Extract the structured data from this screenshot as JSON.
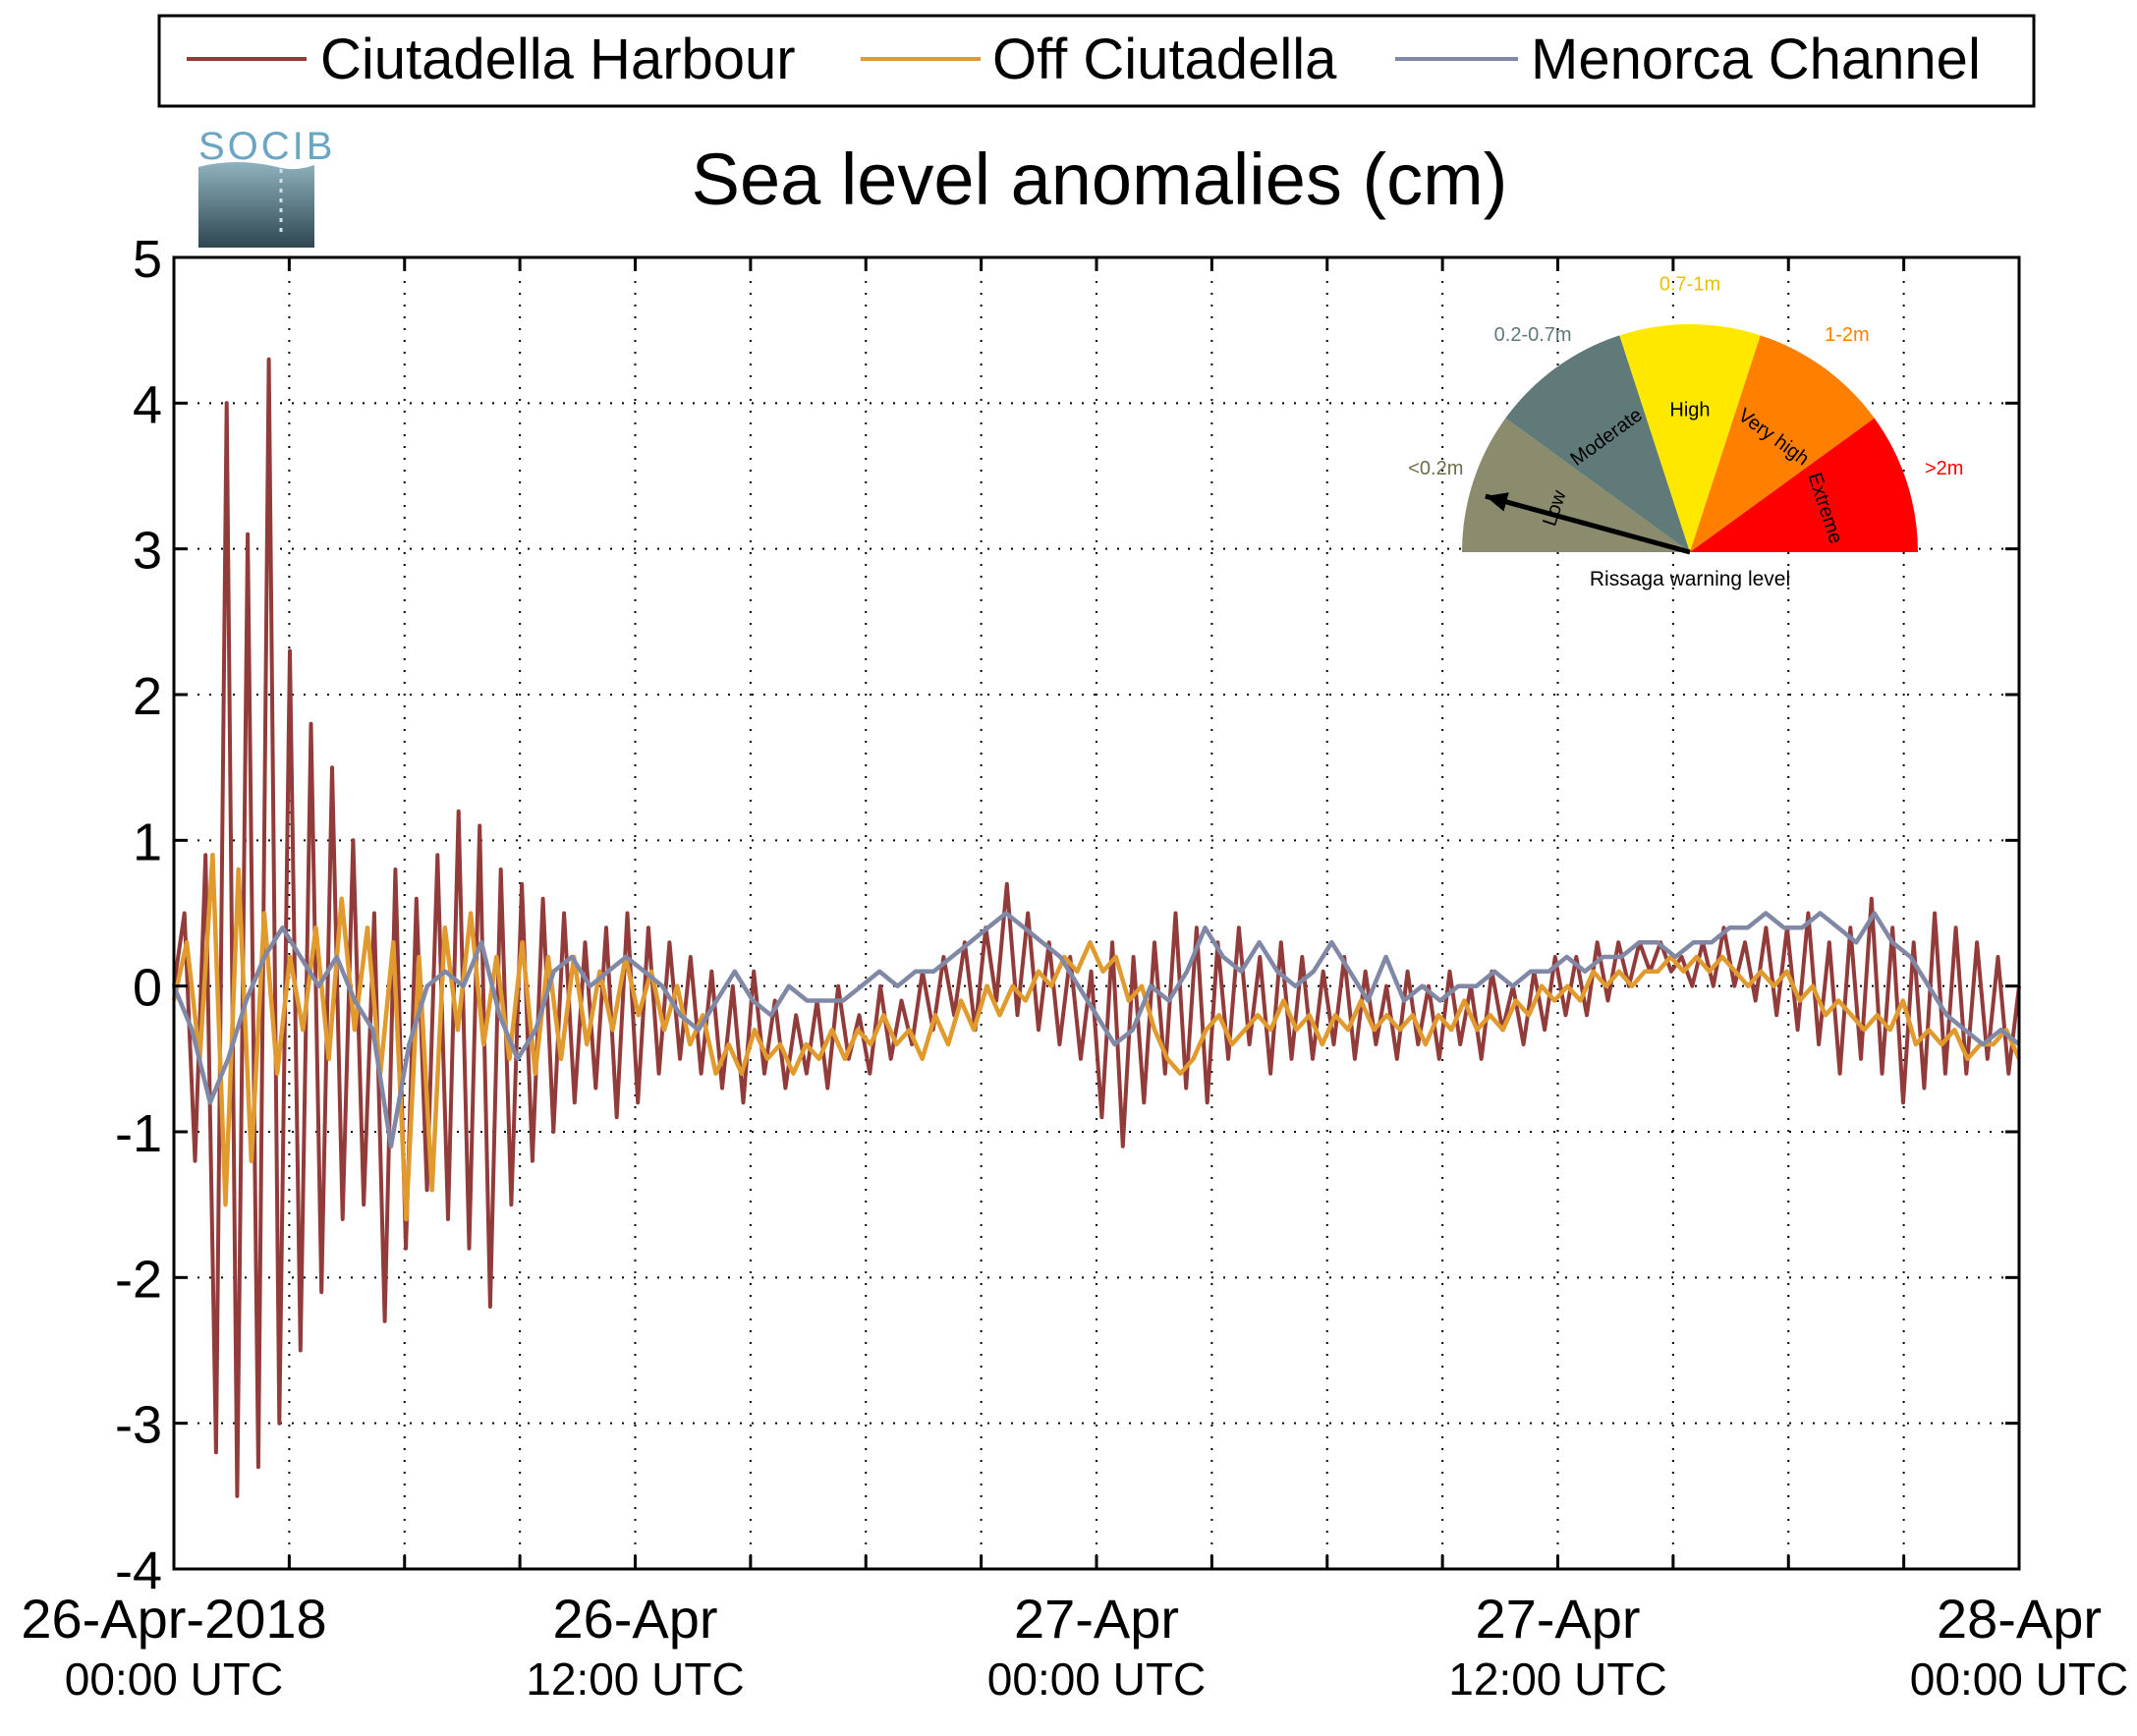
{
  "chart_data": {
    "type": "line",
    "title": "Sea level anomalies (cm)",
    "logo_text": "SOCIB",
    "ylim": [
      -4,
      5
    ],
    "yticks": [
      "5",
      "4",
      "3",
      "2",
      "1",
      "0",
      "-1",
      "-2",
      "-3",
      "-4"
    ],
    "xlim_hours": [
      0,
      48
    ],
    "grid": true,
    "legend_placement": "top",
    "x_tick_labels": [
      {
        "date": "26-Apr-2018",
        "time": "00:00 UTC",
        "hour": 0
      },
      {
        "date": "26-Apr",
        "time": "12:00 UTC",
        "hour": 12
      },
      {
        "date": "27-Apr",
        "time": "00:00 UTC",
        "hour": 24
      },
      {
        "date": "27-Apr",
        "time": "12:00 UTC",
        "hour": 36
      },
      {
        "date": "28-Apr",
        "time": "00:00 UTC",
        "hour": 48
      }
    ],
    "series": [
      {
        "name": "Ciutadella Harbour",
        "color": "#923b3b",
        "values": [
          0,
          0.5,
          -1.2,
          0.9,
          -3.2,
          4.0,
          -3.5,
          3.1,
          -3.3,
          4.3,
          -3.0,
          2.3,
          -2.5,
          1.8,
          -2.1,
          1.5,
          -1.6,
          1.0,
          -1.5,
          0.5,
          -2.3,
          0.8,
          -1.8,
          0.6,
          -1.4,
          0.9,
          -1.6,
          1.2,
          -1.8,
          1.1,
          -2.2,
          0.8,
          -1.5,
          0.7,
          -1.2,
          0.6,
          -1.0,
          0.5,
          -0.8,
          0.3,
          -0.7,
          0.4,
          -0.9,
          0.5,
          -0.8,
          0.4,
          -0.6,
          0.3,
          -0.5,
          0.2,
          -0.6,
          0.1,
          -0.7,
          0.0,
          -0.8,
          0.1,
          -0.6,
          -0.1,
          -0.7,
          -0.2,
          -0.6,
          -0.1,
          -0.7,
          0.0,
          -0.5,
          -0.2,
          -0.6,
          0.0,
          -0.5,
          -0.1,
          -0.4,
          0.1,
          -0.3,
          0.2,
          -0.2,
          0.3,
          -0.3,
          0.4,
          -0.1,
          0.7,
          -0.2,
          0.5,
          -0.3,
          0.3,
          -0.4,
          0.2,
          -0.5,
          0.1,
          -0.9,
          0.3,
          -1.1,
          0.2,
          -0.8,
          0.3,
          -0.6,
          0.5,
          -0.7,
          0.4,
          -0.8,
          0.3,
          -0.5,
          0.4,
          -0.4,
          0.2,
          -0.6,
          0.3,
          -0.5,
          0.2,
          -0.5,
          0.1,
          -0.4,
          0.2,
          -0.5,
          0.1,
          -0.4,
          0.0,
          -0.5,
          0.1,
          -0.4,
          0.0,
          -0.5,
          0.1,
          -0.4,
          0.0,
          -0.5,
          0.1,
          -0.3,
          0.0,
          -0.4,
          0.1,
          -0.3,
          0.2,
          -0.2,
          0.2,
          -0.2,
          0.3,
          -0.1,
          0.3,
          0.0,
          0.3,
          0.1,
          0.3,
          0.1,
          0.2,
          0.0,
          0.3,
          0.0,
          0.4,
          0.0,
          0.3,
          -0.1,
          0.4,
          -0.2,
          0.4,
          -0.3,
          0.5,
          -0.4,
          0.3,
          -0.6,
          0.4,
          -0.5,
          0.6,
          -0.6,
          0.4,
          -0.8,
          0.3,
          -0.7,
          0.5,
          -0.6,
          0.4,
          -0.6,
          0.3,
          -0.5,
          0.2,
          -0.6,
          0.0
        ],
        "note_values_span_hours": [
          0,
          48
        ]
      },
      {
        "name": "Off Ciutadella",
        "color": "#e09a2e",
        "values": [
          -0.1,
          0.3,
          -0.5,
          0.9,
          -1.5,
          0.8,
          -1.2,
          0.5,
          -0.6,
          0.2,
          -0.3,
          0.4,
          -0.5,
          0.6,
          -0.3,
          0.4,
          -0.6,
          0.3,
          -1.6,
          0.2,
          -1.4,
          0.4,
          -0.3,
          0.5,
          -0.4,
          0.2,
          -0.5,
          0.3,
          -0.6,
          0.2,
          -0.5,
          0.2,
          -0.4,
          0.1,
          -0.3,
          0.2,
          -0.2,
          0.1,
          -0.3,
          0.0,
          -0.4,
          -0.2,
          -0.6,
          -0.4,
          -0.6,
          -0.3,
          -0.5,
          -0.4,
          -0.6,
          -0.4,
          -0.5,
          -0.3,
          -0.5,
          -0.3,
          -0.4,
          -0.2,
          -0.4,
          -0.3,
          -0.5,
          -0.2,
          -0.4,
          -0.1,
          -0.3,
          0.0,
          -0.2,
          0.0,
          -0.1,
          0.1,
          0.0,
          0.2,
          0.1,
          0.3,
          0.1,
          0.2,
          -0.1,
          0.0,
          -0.3,
          -0.5,
          -0.6,
          -0.5,
          -0.3,
          -0.2,
          -0.4,
          -0.3,
          -0.2,
          -0.3,
          -0.1,
          -0.3,
          -0.2,
          -0.4,
          -0.2,
          -0.3,
          -0.1,
          -0.3,
          -0.2,
          -0.3,
          -0.2,
          -0.4,
          -0.2,
          -0.3,
          -0.1,
          -0.3,
          -0.2,
          -0.3,
          -0.1,
          -0.2,
          0.0,
          -0.1,
          0.0,
          -0.1,
          0.1,
          0.0,
          0.1,
          0.0,
          0.1,
          0.1,
          0.2,
          0.1,
          0.2,
          0.1,
          0.2,
          0.1,
          0.0,
          0.1,
          0.0,
          0.1,
          -0.1,
          0.0,
          -0.2,
          -0.1,
          -0.2,
          -0.3,
          -0.2,
          -0.3,
          -0.1,
          -0.4,
          -0.3,
          -0.4,
          -0.3,
          -0.5,
          -0.4,
          -0.4,
          -0.3,
          -0.5
        ],
        "note_values_span_hours": [
          0,
          48
        ]
      },
      {
        "name": "Menorca Channel",
        "color": "#8088a6",
        "values": [
          0.0,
          -0.3,
          -0.8,
          -0.5,
          -0.1,
          0.2,
          0.4,
          0.2,
          0.0,
          0.2,
          -0.1,
          -0.3,
          -1.1,
          -0.4,
          0.0,
          0.1,
          0.0,
          0.3,
          -0.2,
          -0.5,
          -0.3,
          0.1,
          0.2,
          0.0,
          0.1,
          0.2,
          0.1,
          0.0,
          -0.2,
          -0.3,
          -0.1,
          0.1,
          -0.1,
          -0.2,
          0.0,
          -0.1,
          -0.1,
          -0.1,
          0.0,
          0.1,
          0.0,
          0.1,
          0.1,
          0.2,
          0.3,
          0.4,
          0.5,
          0.4,
          0.3,
          0.2,
          0.0,
          -0.2,
          -0.4,
          -0.3,
          0.0,
          -0.1,
          0.1,
          0.4,
          0.2,
          0.1,
          0.3,
          0.1,
          0.0,
          0.1,
          0.3,
          0.1,
          -0.1,
          0.2,
          -0.1,
          0.0,
          -0.1,
          0.0,
          0.0,
          0.1,
          0.0,
          0.1,
          0.1,
          0.2,
          0.1,
          0.2,
          0.2,
          0.3,
          0.3,
          0.2,
          0.3,
          0.3,
          0.4,
          0.4,
          0.5,
          0.4,
          0.4,
          0.5,
          0.4,
          0.3,
          0.5,
          0.3,
          0.2,
          0.0,
          -0.2,
          -0.3,
          -0.4,
          -0.3,
          -0.4
        ],
        "note_values_span_hours": [
          0,
          48
        ]
      }
    ]
  },
  "inset": {
    "title": "Rissaga warning level",
    "needle_level": "Low",
    "levels": [
      {
        "name": "Low",
        "range": "<0.2m",
        "color": "#8b8b6e"
      },
      {
        "name": "Moderate",
        "range": "0.2-0.7m",
        "color": "#5f7a78"
      },
      {
        "name": "High",
        "range": "0.7-1m",
        "color": "#ffe800"
      },
      {
        "name": "Very high",
        "range": "1-2m",
        "color": "#ff7f00"
      },
      {
        "name": "Extreme",
        "range": ">2m",
        "color": "#ff0000"
      }
    ],
    "range_label_colors": [
      "#6e6e4e",
      "#5f7a78",
      "#e6c200",
      "#ff7f00",
      "#ff0000"
    ]
  }
}
